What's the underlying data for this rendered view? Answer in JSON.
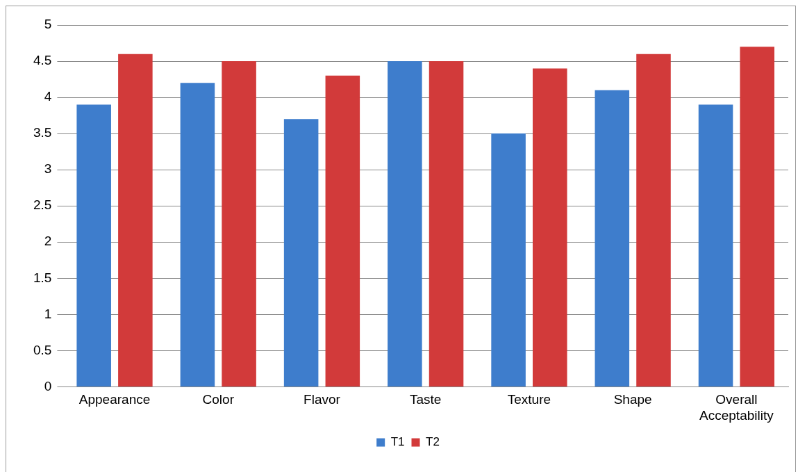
{
  "chart_data": {
    "type": "bar",
    "categories": [
      "Appearance",
      "Color",
      "Flavor",
      "Taste",
      "Texture",
      "Shape",
      "Overall Acceptability"
    ],
    "series": [
      {
        "name": "T1",
        "color": "#3e7dcc",
        "values": [
          3.9,
          4.2,
          3.7,
          4.5,
          3.5,
          4.1,
          3.9
        ]
      },
      {
        "name": "T2",
        "color": "#d23a3a",
        "values": [
          4.6,
          4.5,
          4.3,
          4.5,
          4.4,
          4.6,
          4.7
        ]
      }
    ],
    "ylim": [
      0,
      5
    ],
    "yticks": [
      0,
      0.5,
      1,
      1.5,
      2,
      2.5,
      3,
      3.5,
      4,
      4.5,
      5
    ],
    "grid": "y",
    "legend": "bottom"
  }
}
